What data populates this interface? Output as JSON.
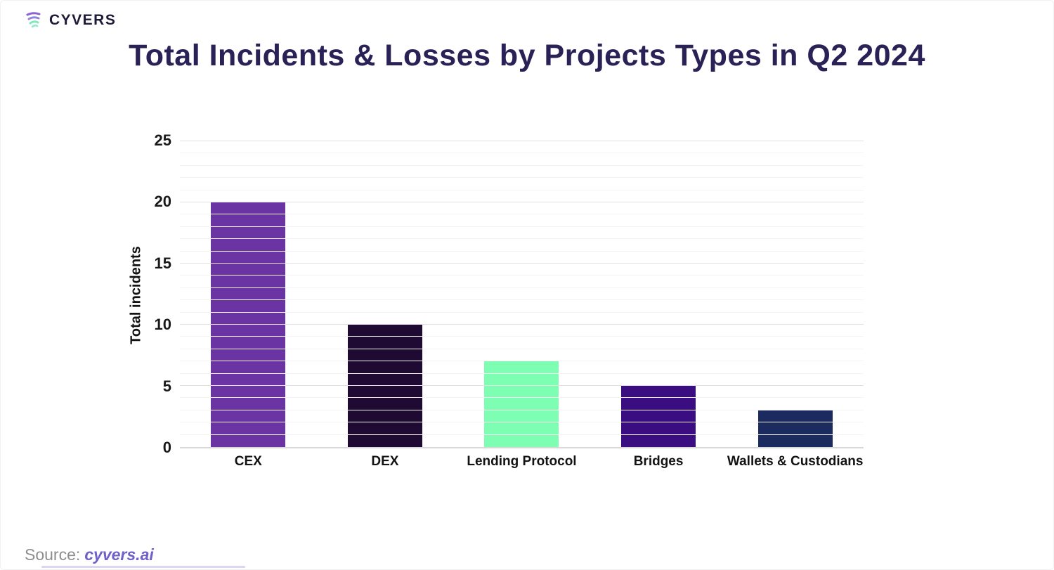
{
  "brand": {
    "name": "CYVERS",
    "logo_icon": "cyvers-swoosh-icon",
    "icon_colors": [
      "#8a63d2",
      "#8f86dc",
      "#7fe8c0"
    ]
  },
  "source": {
    "label": "Source:",
    "link": "cyvers.ai"
  },
  "chart_data": {
    "type": "bar",
    "title": "Total Incidents & Losses by Projects Types in Q2 2024",
    "categories": [
      "CEX",
      "DEX",
      "Lending Protocol",
      "Bridges",
      "Wallets & Custodians"
    ],
    "values": [
      20,
      10,
      7,
      5,
      3
    ],
    "bar_colors": [
      "#6B34A3",
      "#1F0A33",
      "#7DFEB2",
      "#3A0E80",
      "#1C2B5F"
    ],
    "xlabel": "",
    "ylabel": "Total incidents",
    "ylim": [
      0,
      25
    ],
    "yticks": [
      0,
      5,
      10,
      15,
      20,
      25
    ],
    "grid": "horizontal; minor every 1 unit, major every 5 units",
    "legend": "none",
    "title_color": "#2a2257"
  }
}
